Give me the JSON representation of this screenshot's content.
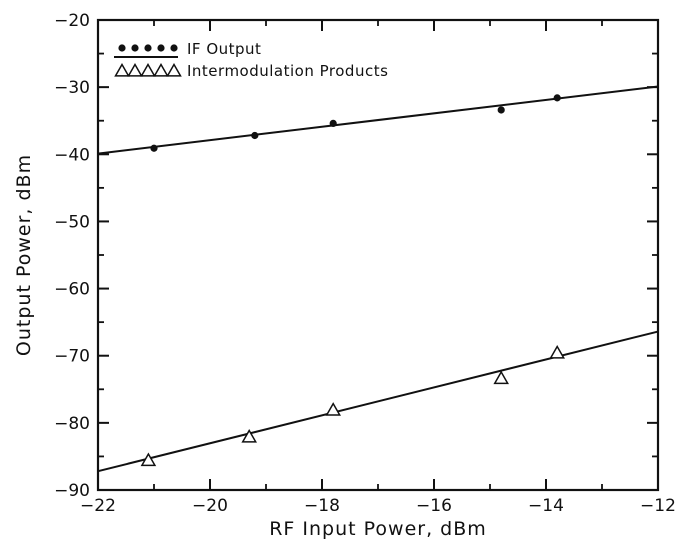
{
  "chart_data": {
    "type": "scatter",
    "xlabel": "RF Input Power, dBm",
    "ylabel": "Output Power, dBm",
    "xlim": [
      -22,
      -12
    ],
    "ylim": [
      -90,
      -20
    ],
    "x_ticks": [
      -22,
      -20,
      -18,
      -16,
      -14,
      -12
    ],
    "y_ticks": [
      -20,
      -30,
      -40,
      -50,
      -60,
      -70,
      -80,
      -90
    ],
    "x_tick_labels": [
      "−22",
      "−20",
      "−18",
      "−16",
      "−14",
      "−12"
    ],
    "y_tick_labels": [
      "−20",
      "−30",
      "−40",
      "−50",
      "−60",
      "−70",
      "−80",
      "−90"
    ],
    "legend": {
      "placement": "top-left",
      "entries": [
        "IF Output",
        "Intermodulation Products"
      ]
    },
    "series": [
      {
        "name": "IF Output",
        "marker": "filled-circle",
        "points": [
          [
            -21.0,
            -39.1
          ],
          [
            -19.2,
            -37.2
          ],
          [
            -17.8,
            -35.4
          ],
          [
            -14.8,
            -33.4
          ],
          [
            -13.8,
            -31.6
          ]
        ],
        "fit_line": [
          [
            -22,
            -39.9
          ],
          [
            -12,
            -29.9
          ]
        ]
      },
      {
        "name": "Intermodulation Products",
        "marker": "open-triangle",
        "points": [
          [
            -21.1,
            -85.6
          ],
          [
            -19.3,
            -82.1
          ],
          [
            -17.8,
            -78.1
          ],
          [
            -14.8,
            -73.4
          ],
          [
            -13.8,
            -69.6
          ]
        ],
        "fit_line": [
          [
            -22,
            -87.2
          ],
          [
            -12,
            -66.4
          ]
        ]
      }
    ],
    "grid": false
  }
}
